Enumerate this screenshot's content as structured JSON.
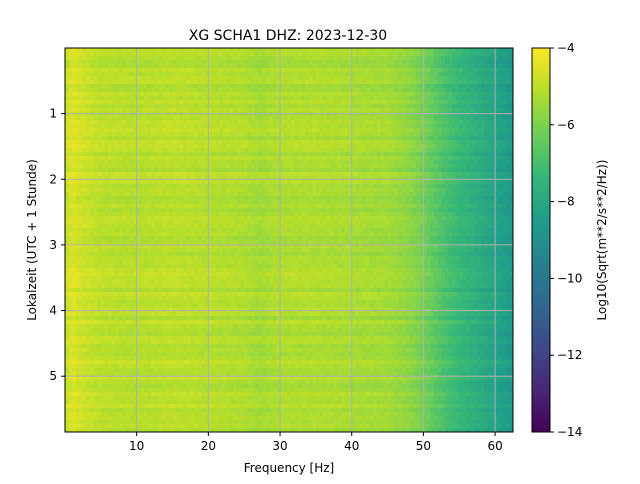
{
  "chart_data": {
    "type": "heatmap",
    "title": "XG SCHA1  DHZ: 2023-12-30",
    "xlabel": "Frequency [Hz]",
    "ylabel": "Lokalzeit (UTC + 1 Stunde)",
    "xlim": [
      0,
      62.5
    ],
    "ylim": [
      5.85,
      0
    ],
    "x_ticks": [
      10,
      20,
      30,
      40,
      50,
      60
    ],
    "y_ticks": [
      1,
      2,
      3,
      4,
      5
    ],
    "grid": true,
    "colormap": "viridis",
    "colorbar": {
      "label": "Log10(Sqrt(m**2/s**2/Hz))",
      "range": [
        -14,
        -4
      ],
      "ticks": [
        -14,
        -12,
        -10,
        -8,
        -6,
        -4
      ]
    },
    "z_profile_by_frequency": {
      "frequency": [
        0,
        1,
        2,
        5,
        10,
        15,
        20,
        25,
        27,
        30,
        35,
        40,
        45,
        48,
        50,
        53,
        55,
        58,
        60,
        62.5
      ],
      "value": [
        -4.9,
        -4.5,
        -4.7,
        -5.0,
        -5.1,
        -5.0,
        -5.1,
        -5.2,
        -5.4,
        -5.2,
        -5.2,
        -5.3,
        -5.4,
        -5.7,
        -6.1,
        -6.9,
        -7.3,
        -7.8,
        -8.2,
        -8.6
      ]
    }
  },
  "colors": {
    "grid": "#b0b0b0",
    "viridis_stops": [
      "#440154",
      "#482878",
      "#3e4989",
      "#31688e",
      "#26828e",
      "#1f9e89",
      "#35b779",
      "#6ece58",
      "#b5de2b",
      "#fde725"
    ]
  }
}
